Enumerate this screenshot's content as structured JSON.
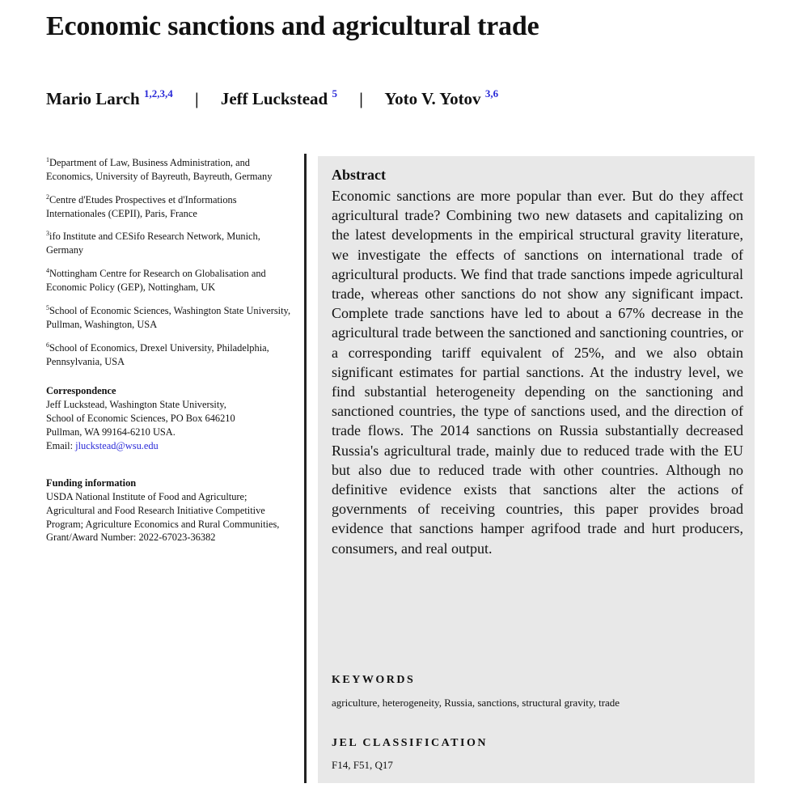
{
  "title": "Economic sanctions and agricultural trade",
  "authors": [
    {
      "name": "Mario Larch",
      "affil": "1,2,3,4"
    },
    {
      "name": "Jeff Luckstead",
      "affil": "5"
    },
    {
      "name": "Yoto V. Yotov",
      "affil": "3,6"
    }
  ],
  "separator": "|",
  "affiliations": [
    {
      "num": "1",
      "text": "Department of Law, Business Administration, and Economics, University of Bayreuth, Bayreuth, Germany"
    },
    {
      "num": "2",
      "text": "Centre d'Etudes Prospectives et d'Informations Internationales (CEPII), Paris, France"
    },
    {
      "num": "3",
      "text": "ifo Institute and CESifo Research Network, Munich, Germany"
    },
    {
      "num": "4",
      "text": "Nottingham Centre for Research on Globalisation and Economic Policy (GEP), Nottingham, UK"
    },
    {
      "num": "5",
      "text": "School of Economic Sciences, Washington State University, Pullman, Washington, USA"
    },
    {
      "num": "6",
      "text": "School of Economics, Drexel University, Philadelphia, Pennsylvania, USA"
    }
  ],
  "correspondence": {
    "heading": "Correspondence",
    "lines": [
      "Jeff Luckstead, Washington State University,",
      "School of Economic Sciences, PO Box 646210",
      "Pullman, WA 99164-6210 USA."
    ],
    "email_label": "Email:",
    "email": "jluckstead@wsu.edu"
  },
  "funding": {
    "heading": "Funding information",
    "text": "USDA National Institute of Food and Agriculture; Agricultural and Food Research Initiative Competitive Program; Agriculture Economics and Rural Communities, Grant/Award Number: 2022-67023-36382"
  },
  "abstract": {
    "heading": "Abstract",
    "text": "Economic sanctions are more popular than ever. But do they affect agricultural trade? Combining two new datasets and capitalizing on the latest developments in the empirical structural gravity literature, we investigate the effects of sanctions on international trade of agricultural products. We find that trade sanctions impede agricultural trade, whereas other sanctions do not show any significant impact. Complete trade sanctions have led to about a 67% decrease in the agricultural trade between the sanctioned and sanctioning countries, or a corresponding tariff equivalent of 25%, and we also obtain significant estimates for partial sanctions. At the industry level, we find substantial heterogeneity depending on the sanctioning and sanctioned countries, the type of sanctions used, and the direction of trade flows. The 2014 sanctions on Russia substantially decreased Russia's agricultural trade, mainly due to reduced trade with the EU but also due to reduced trade with other countries. Although no definitive evidence exists that sanctions alter the actions of governments of receiving countries, this paper provides broad evidence that sanctions hamper agrifood trade and hurt producers, consumers, and real output."
  },
  "keywords": {
    "heading": "KEYWORDS",
    "text": "agriculture, heterogeneity, Russia, sanctions, structural gravity, trade"
  },
  "jel": {
    "heading": "JEL CLASSIFICATION",
    "text": "F14, F51, Q17"
  },
  "colors": {
    "link": "#2a2ad8",
    "abstract_bg": "#e8e8e8"
  }
}
